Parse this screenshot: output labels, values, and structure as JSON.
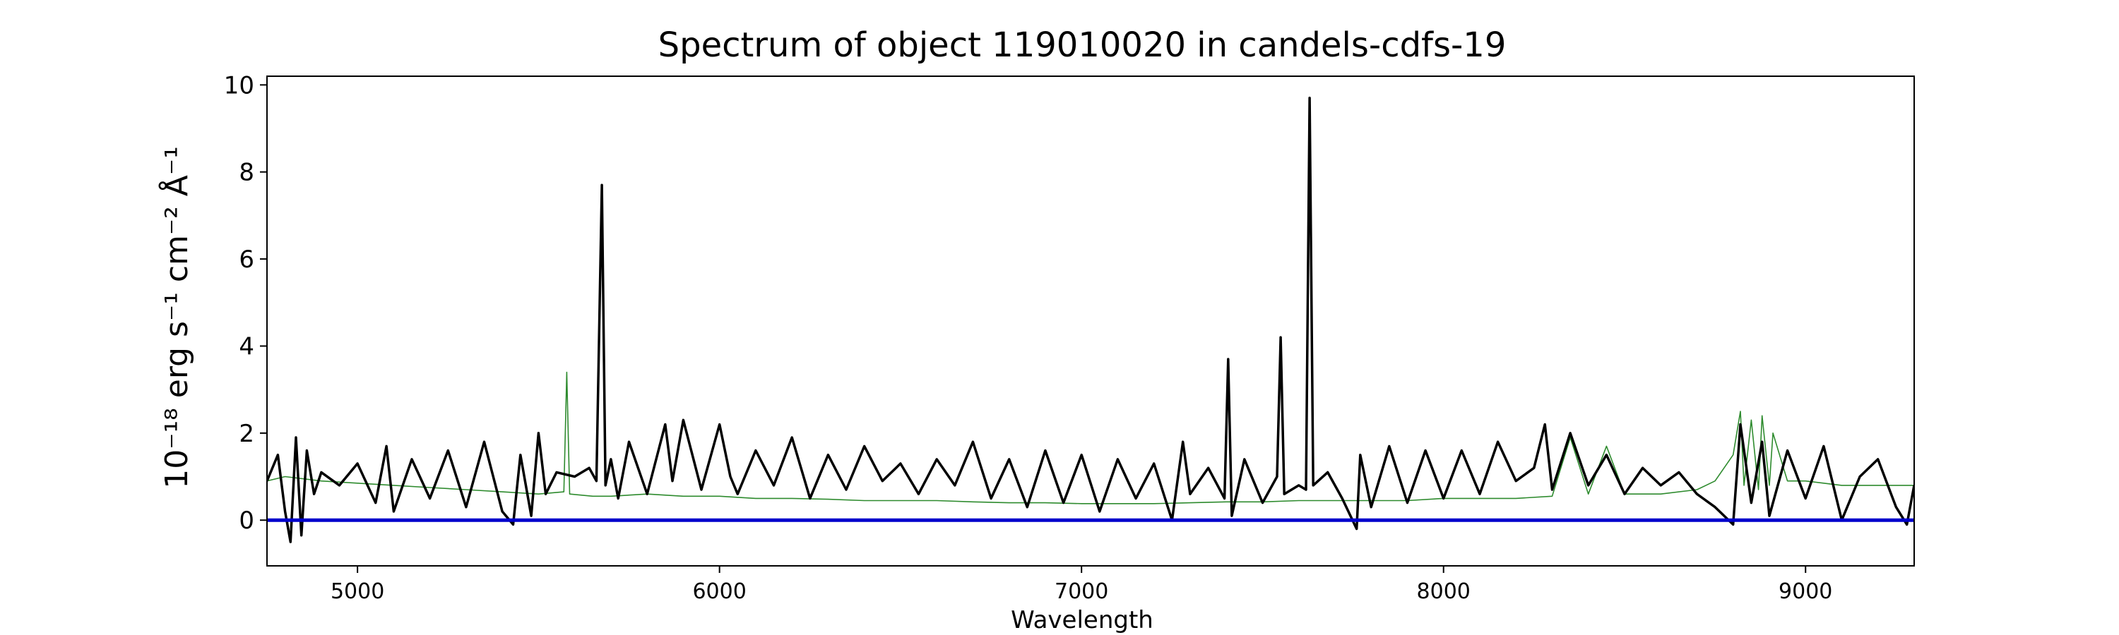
{
  "chart_data": {
    "type": "line",
    "title": "Spectrum of object 119010020 in candels-cdfs-19",
    "xlabel": "Wavelength",
    "ylabel": "10⁻¹⁸ erg s⁻¹ cm⁻² Å⁻¹",
    "xlim": [
      4750,
      9300
    ],
    "ylim": [
      -1.05,
      10.2
    ],
    "x_ticks": [
      5000,
      6000,
      7000,
      8000,
      9000
    ],
    "y_ticks": [
      0,
      2,
      4,
      6,
      8,
      10
    ],
    "grid": false,
    "colors": {
      "flux": "#000000",
      "noise": "#2e8b2e",
      "zero": "#0000cc"
    },
    "series": [
      {
        "key": "flux",
        "x": [
          4750,
          4780,
          4800,
          4815,
          4830,
          4845,
          4860,
          4880,
          4900,
          4950,
          5000,
          5050,
          5080,
          5100,
          5150,
          5200,
          5250,
          5300,
          5350,
          5400,
          5430,
          5450,
          5480,
          5500,
          5520,
          5550,
          5600,
          5640,
          5660,
          5675,
          5685,
          5700,
          5720,
          5750,
          5800,
          5850,
          5870,
          5900,
          5950,
          6000,
          6030,
          6050,
          6100,
          6150,
          6200,
          6250,
          6300,
          6350,
          6400,
          6450,
          6500,
          6550,
          6600,
          6650,
          6700,
          6750,
          6800,
          6850,
          6900,
          6950,
          7000,
          7050,
          7100,
          7150,
          7200,
          7250,
          7280,
          7300,
          7350,
          7395,
          7405,
          7415,
          7450,
          7500,
          7540,
          7550,
          7560,
          7600,
          7620,
          7630,
          7640,
          7680,
          7720,
          7760,
          7770,
          7800,
          7850,
          7900,
          7950,
          8000,
          8050,
          8100,
          8150,
          8200,
          8250,
          8280,
          8300,
          8350,
          8400,
          8450,
          8500,
          8550,
          8600,
          8650,
          8700,
          8750,
          8800,
          8820,
          8850,
          8880,
          8900,
          8950,
          9000,
          9050,
          9100,
          9150,
          9200,
          9250,
          9280,
          9300
        ],
        "y": [
          0.9,
          1.5,
          0.2,
          -0.5,
          1.9,
          -0.35,
          1.6,
          0.6,
          1.1,
          0.8,
          1.3,
          0.4,
          1.7,
          0.2,
          1.4,
          0.5,
          1.6,
          0.3,
          1.8,
          0.2,
          -0.1,
          1.5,
          0.1,
          2.0,
          0.6,
          1.1,
          1.0,
          1.2,
          0.9,
          7.7,
          0.8,
          1.4,
          0.5,
          1.8,
          0.6,
          2.2,
          0.9,
          2.3,
          0.7,
          2.2,
          1.0,
          0.6,
          1.6,
          0.8,
          1.9,
          0.5,
          1.5,
          0.7,
          1.7,
          0.9,
          1.3,
          0.6,
          1.4,
          0.8,
          1.8,
          0.5,
          1.4,
          0.3,
          1.6,
          0.4,
          1.5,
          0.2,
          1.4,
          0.5,
          1.3,
          0.0,
          1.8,
          0.6,
          1.2,
          0.5,
          3.7,
          0.1,
          1.4,
          0.4,
          1.0,
          4.2,
          0.6,
          0.8,
          0.7,
          9.7,
          0.8,
          1.1,
          0.5,
          -0.2,
          1.5,
          0.3,
          1.7,
          0.4,
          1.6,
          0.5,
          1.6,
          0.6,
          1.8,
          0.9,
          1.2,
          2.2,
          0.7,
          2.0,
          0.8,
          1.5,
          0.6,
          1.2,
          0.8,
          1.1,
          0.6,
          0.3,
          -0.1,
          2.2,
          0.4,
          1.8,
          0.1,
          1.6,
          0.5,
          1.7,
          0.0,
          1.0,
          1.4,
          0.3,
          -0.1,
          0.8
        ]
      },
      {
        "key": "noise",
        "x": [
          4750,
          4800,
          4900,
          5000,
          5100,
          5200,
          5300,
          5400,
          5500,
          5570,
          5578,
          5586,
          5650,
          5700,
          5800,
          5900,
          6000,
          6100,
          6200,
          6300,
          6400,
          6500,
          6600,
          6700,
          6800,
          6900,
          7000,
          7100,
          7200,
          7300,
          7400,
          7500,
          7600,
          7700,
          7800,
          7900,
          8000,
          8100,
          8200,
          8300,
          8350,
          8400,
          8450,
          8500,
          8600,
          8700,
          8750,
          8800,
          8820,
          8830,
          8850,
          8870,
          8880,
          8900,
          8910,
          8950,
          9000,
          9100,
          9200,
          9300
        ],
        "y": [
          0.9,
          1.0,
          0.9,
          0.85,
          0.8,
          0.75,
          0.7,
          0.65,
          0.6,
          0.65,
          3.4,
          0.6,
          0.55,
          0.55,
          0.6,
          0.55,
          0.55,
          0.5,
          0.5,
          0.48,
          0.45,
          0.45,
          0.45,
          0.42,
          0.4,
          0.4,
          0.38,
          0.38,
          0.38,
          0.4,
          0.42,
          0.42,
          0.45,
          0.45,
          0.45,
          0.45,
          0.5,
          0.5,
          0.5,
          0.55,
          1.9,
          0.6,
          1.7,
          0.6,
          0.6,
          0.7,
          0.9,
          1.5,
          2.5,
          0.8,
          2.3,
          0.7,
          2.4,
          0.8,
          2.0,
          0.9,
          0.9,
          0.8,
          0.8,
          0.8
        ]
      }
    ]
  }
}
